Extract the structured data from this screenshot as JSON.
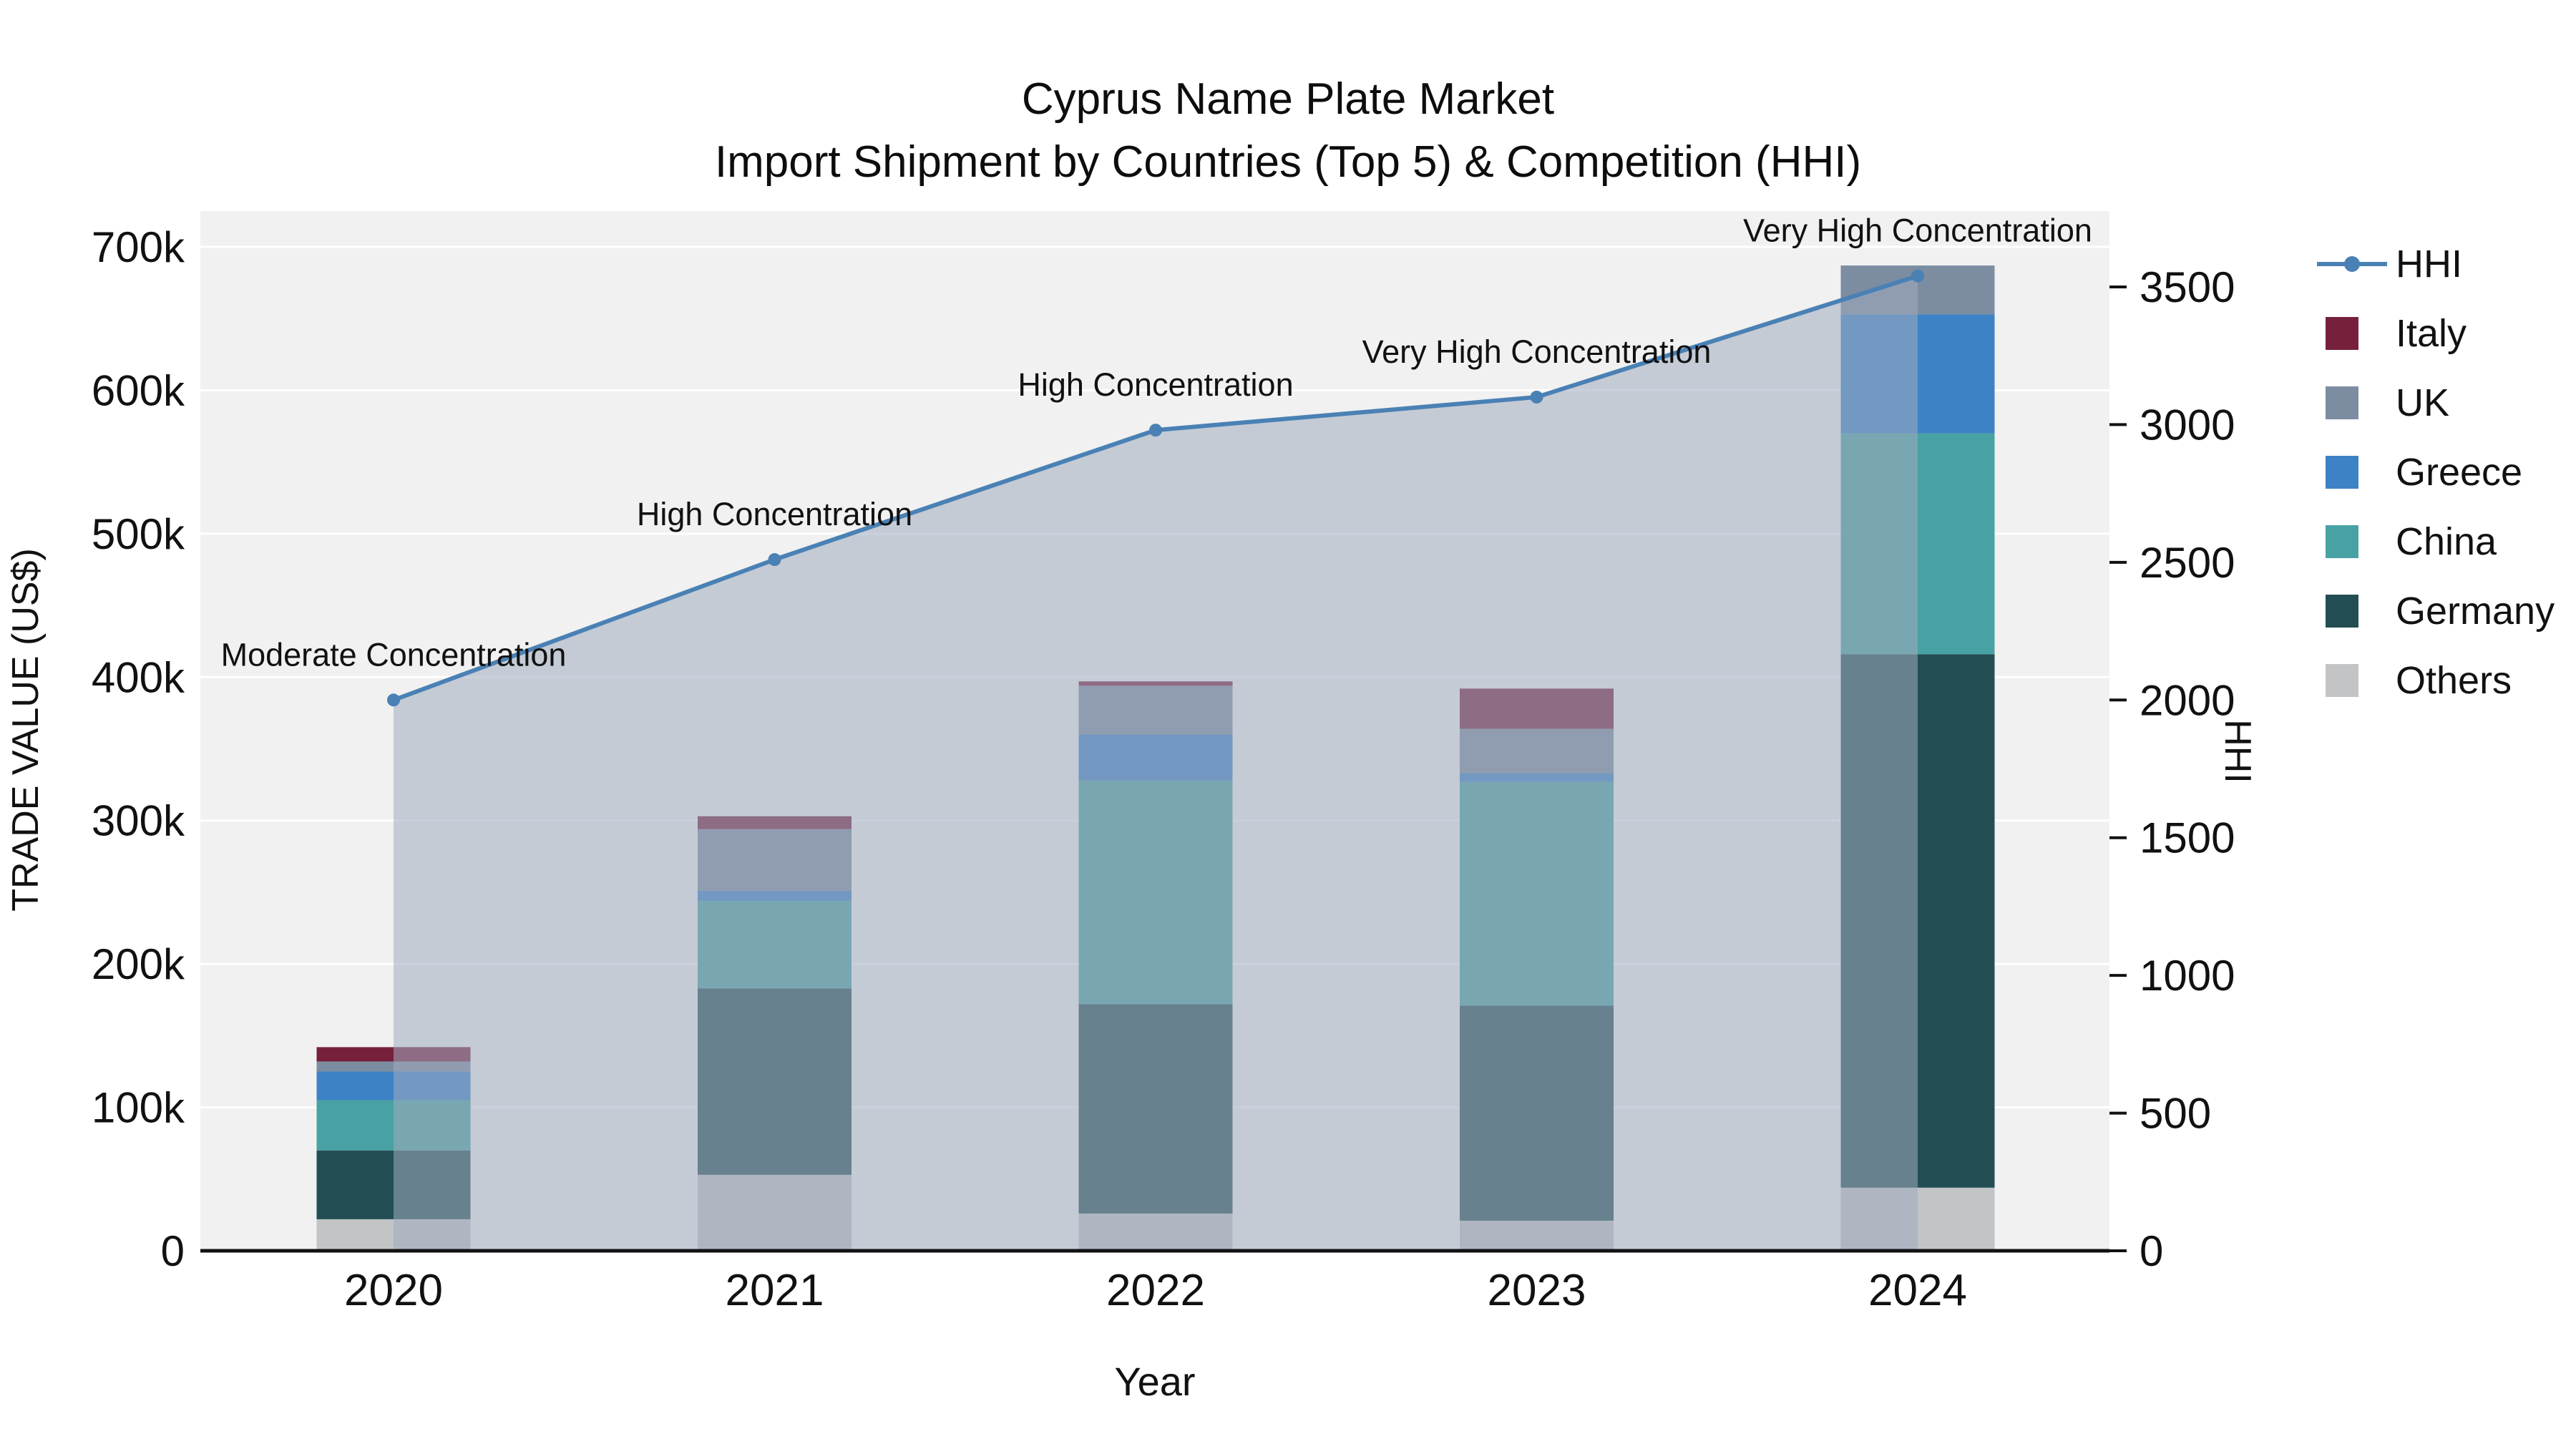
{
  "title": {
    "line1": "Cyprus Name Plate Market",
    "line2": "Import Shipment by Countries (Top 5) & Competition (HHI)"
  },
  "axes": {
    "x": {
      "title": "Year",
      "categories": [
        "2020",
        "2021",
        "2022",
        "2023",
        "2024"
      ]
    },
    "y_left": {
      "title": "TRADE VALUE (US$)",
      "tick_values": [
        0,
        100000,
        200000,
        300000,
        400000,
        500000,
        600000,
        700000
      ],
      "tick_labels": [
        "0",
        "100k",
        "200k",
        "300k",
        "400k",
        "500k",
        "600k",
        "700k"
      ],
      "range": [
        0,
        725000
      ]
    },
    "y_right": {
      "title": "HHI",
      "tick_values": [
        0,
        500,
        1000,
        1500,
        2000,
        2500,
        3000,
        3500
      ],
      "tick_labels": [
        "0",
        "500",
        "1000",
        "1500",
        "2000",
        "2500",
        "3000",
        "3500"
      ],
      "range": [
        0,
        3500
      ]
    }
  },
  "chart_data": {
    "type": "combo-stacked-bar-line",
    "categories": [
      "2020",
      "2021",
      "2022",
      "2023",
      "2024"
    ],
    "bar_axis": "left",
    "bar_series_bottom_to_top": [
      {
        "name": "Others",
        "color": "#c2c4c6",
        "values": [
          22000,
          53000,
          26000,
          21000,
          44000
        ]
      },
      {
        "name": "Germany",
        "color": "#224e53",
        "values": [
          48000,
          130000,
          146000,
          150000,
          372000
        ]
      },
      {
        "name": "China",
        "color": "#48a2a3",
        "values": [
          35000,
          61000,
          156000,
          156000,
          154000
        ]
      },
      {
        "name": "Greece",
        "color": "#3d82c4",
        "values": [
          20000,
          7000,
          32000,
          6000,
          83000
        ]
      },
      {
        "name": "UK",
        "color": "#7c8da1",
        "values": [
          7000,
          43000,
          34000,
          31000,
          34000
        ]
      },
      {
        "name": "Italy",
        "color": "#77203c",
        "values": [
          10000,
          9000,
          3000,
          28000,
          0
        ]
      }
    ],
    "bar_totals": [
      142000,
      303000,
      397000,
      392000,
      687000
    ],
    "line_series": {
      "name": "HHI",
      "axis": "right",
      "color": "#4a81b5",
      "fill": "rgba(160,172,192,0.55)",
      "values": [
        2000,
        2510,
        2980,
        3100,
        3540
      ]
    },
    "annotations": [
      {
        "x_index": 0,
        "text": "Moderate Concentration"
      },
      {
        "x_index": 1,
        "text": "High Concentration"
      },
      {
        "x_index": 2,
        "text": "High Concentration"
      },
      {
        "x_index": 3,
        "text": "Very High Concentration"
      },
      {
        "x_index": 4,
        "text": "Very High Concentration"
      }
    ],
    "plot_bg": "#f0f1f0",
    "grid_color": "#ffffff",
    "axis_line_color": "#111111",
    "grid": true,
    "legend_position": "right"
  },
  "legend": {
    "items": [
      {
        "label": "HHI",
        "type": "line",
        "color": "#4a81b5"
      },
      {
        "label": "Italy",
        "type": "square",
        "color": "#77203c"
      },
      {
        "label": "UK",
        "type": "square",
        "color": "#7c8da1"
      },
      {
        "label": "Greece",
        "type": "square",
        "color": "#3d82c4"
      },
      {
        "label": "China",
        "type": "square",
        "color": "#48a2a3"
      },
      {
        "label": "Germany",
        "type": "square",
        "color": "#224e53"
      },
      {
        "label": "Others",
        "type": "square",
        "color": "#c2c4c6"
      }
    ]
  }
}
